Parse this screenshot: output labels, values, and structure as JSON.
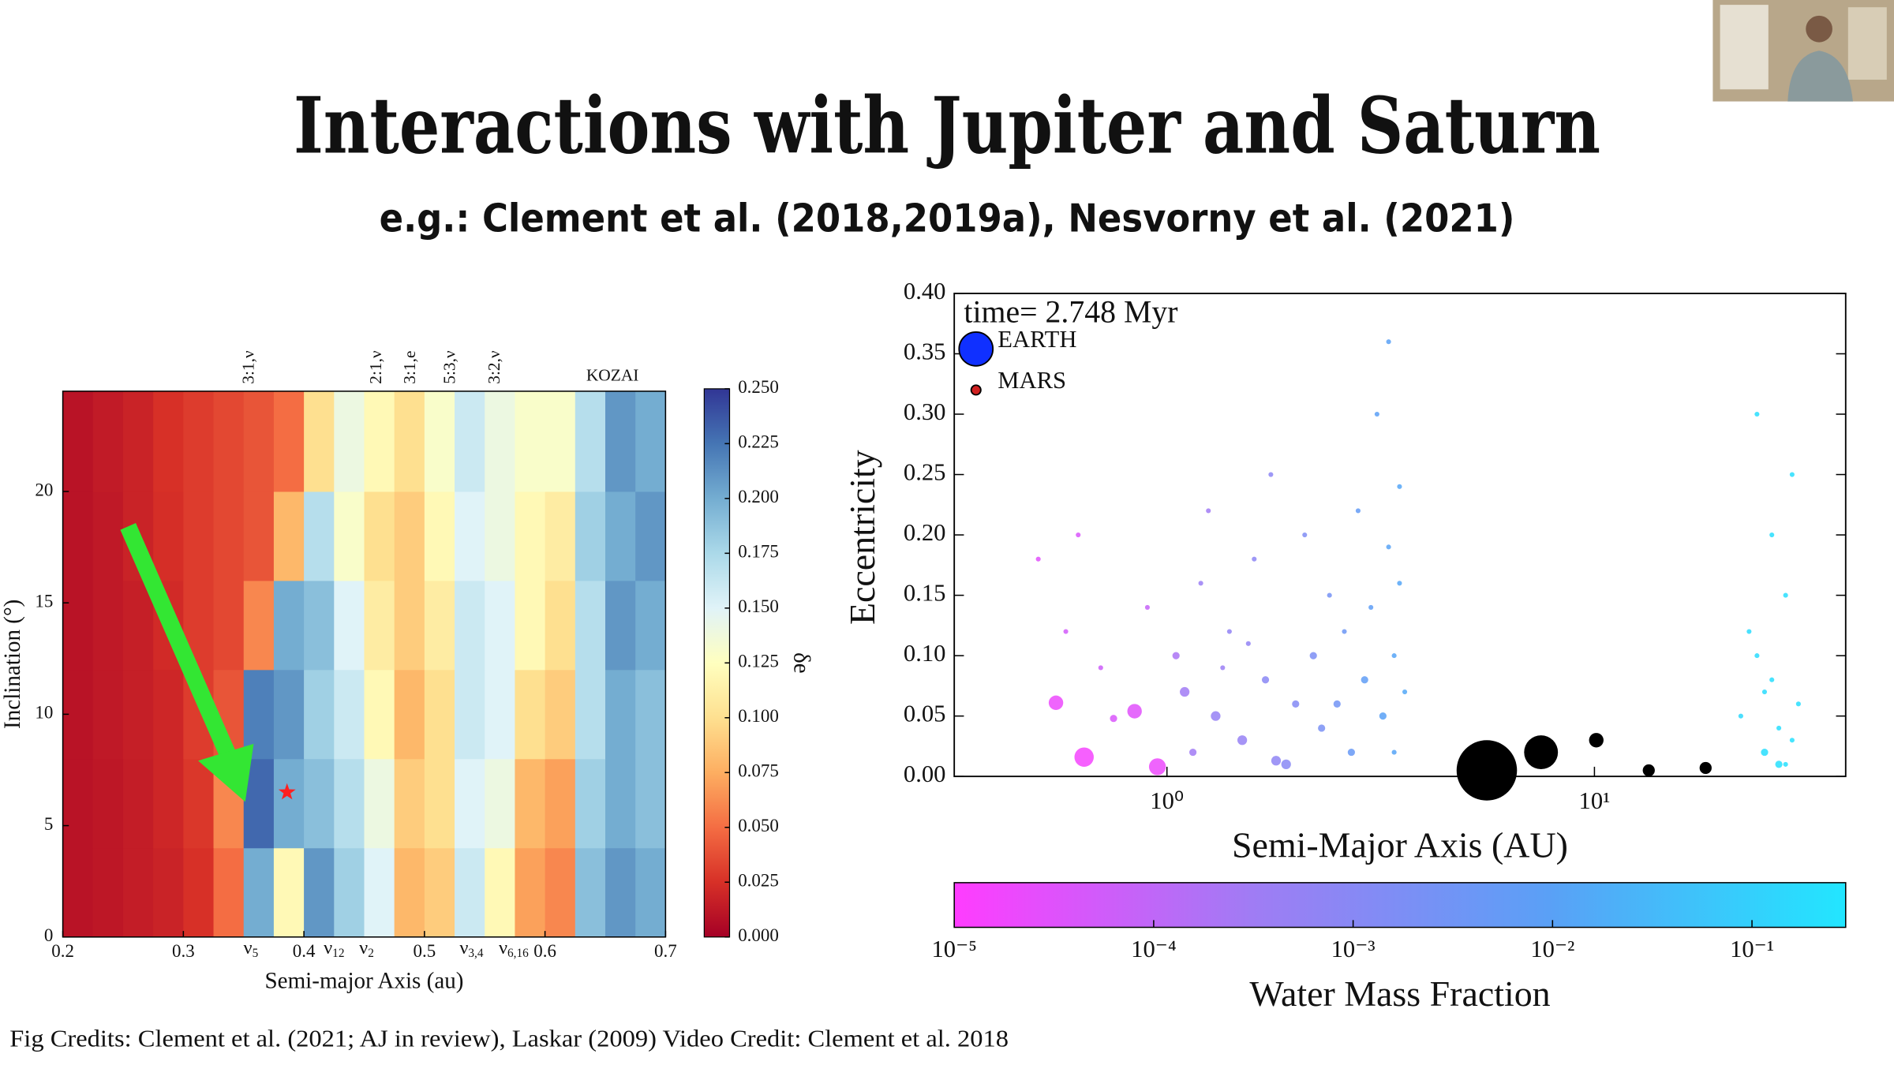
{
  "title": "Interactions with Jupiter and Saturn",
  "subtitle": "e.g.:  Clement et al. (2018,2019a), Nesvorny et al. (2021)",
  "credits": "Fig Credits: Clement et al. (2021; AJ in review), Laskar (2009) Video Credit: Clement et al. 2018",
  "chart_data": [
    {
      "type": "heatmap",
      "xlabel": "Semi-major Axis (au)",
      "ylabel": "Inclination (°)",
      "xlim": [
        0.2,
        0.7
      ],
      "ylim": [
        0,
        24.5
      ],
      "xticks": [
        0.2,
        0.3,
        0.4,
        0.5,
        0.6,
        0.7
      ],
      "yticks": [
        0,
        5,
        10,
        15,
        20
      ],
      "xbins": [
        0.2,
        0.225,
        0.25,
        0.275,
        0.3,
        0.325,
        0.35,
        0.375,
        0.4,
        0.425,
        0.45,
        0.475,
        0.5,
        0.525,
        0.55,
        0.575,
        0.6,
        0.625,
        0.65,
        0.675,
        0.7
      ],
      "ybins": [
        0,
        4,
        8,
        12,
        16,
        20,
        24.5
      ],
      "values": [
        [
          0.01,
          0.012,
          0.015,
          0.018,
          0.025,
          0.05,
          0.2,
          0.12,
          0.21,
          0.18,
          0.15,
          0.08,
          0.09,
          0.16,
          0.12,
          0.07,
          0.06,
          0.19,
          0.21,
          0.2
        ],
        [
          0.01,
          0.012,
          0.015,
          0.02,
          0.028,
          0.06,
          0.23,
          0.2,
          0.19,
          0.17,
          0.14,
          0.09,
          0.1,
          0.15,
          0.14,
          0.08,
          0.07,
          0.18,
          0.2,
          0.19
        ],
        [
          0.01,
          0.013,
          0.016,
          0.02,
          0.03,
          0.04,
          0.22,
          0.21,
          0.18,
          0.16,
          0.12,
          0.08,
          0.1,
          0.16,
          0.15,
          0.1,
          0.09,
          0.17,
          0.2,
          0.19
        ],
        [
          0.01,
          0.013,
          0.016,
          0.022,
          0.03,
          0.035,
          0.06,
          0.2,
          0.19,
          0.15,
          0.11,
          0.09,
          0.11,
          0.16,
          0.15,
          0.12,
          0.1,
          0.17,
          0.21,
          0.2
        ],
        [
          0.01,
          0.013,
          0.018,
          0.024,
          0.03,
          0.035,
          0.04,
          0.08,
          0.17,
          0.13,
          0.1,
          0.09,
          0.12,
          0.15,
          0.14,
          0.12,
          0.11,
          0.18,
          0.2,
          0.21
        ],
        [
          0.01,
          0.014,
          0.018,
          0.025,
          0.03,
          0.035,
          0.04,
          0.05,
          0.1,
          0.14,
          0.12,
          0.1,
          0.13,
          0.16,
          0.14,
          0.13,
          0.13,
          0.17,
          0.21,
          0.2
        ]
      ],
      "colorbar_label": "δe",
      "clim": [
        0,
        0.25
      ],
      "cticks": [
        {
          "value": 0,
          "label": "0.000"
        },
        {
          "value": 0.025,
          "label": "0.025"
        },
        {
          "value": 0.05,
          "label": "0.050"
        },
        {
          "value": 0.075,
          "label": "0.075"
        },
        {
          "value": 0.1,
          "label": "0.100"
        },
        {
          "value": 0.125,
          "label": "0.125"
        },
        {
          "value": 0.15,
          "label": "0.150"
        },
        {
          "value": 0.175,
          "label": "0.175"
        },
        {
          "value": 0.2,
          "label": "0.200"
        },
        {
          "value": 0.225,
          "label": "0.225"
        },
        {
          "value": 0.25,
          "label": "0.250"
        }
      ],
      "colormap": [
        "#a50026",
        "#d73027",
        "#f46d43",
        "#fdae61",
        "#fee090",
        "#ffffbf",
        "#e0f3f8",
        "#abd9e9",
        "#74add1",
        "#4575b4",
        "#313695"
      ],
      "top_labels": [
        {
          "text": "3:1,ν",
          "x": 0.355,
          "vertical": true
        },
        {
          "text": "2:1,ν",
          "x": 0.461,
          "vertical": true
        },
        {
          "text": "3:1,e",
          "x": 0.489,
          "vertical": true
        },
        {
          "text": "5:3,ν",
          "x": 0.522,
          "vertical": true
        },
        {
          "text": "3:2,ν",
          "x": 0.559,
          "vertical": true
        },
        {
          "text": "KOZAI",
          "x": 0.656,
          "vertical": false
        }
      ],
      "bottom_labels": [
        {
          "symbol": "ν",
          "sub": "5",
          "x": 0.356
        },
        {
          "symbol": "ν",
          "sub": "12",
          "x": 0.425
        },
        {
          "symbol": "ν",
          "sub": "2",
          "x": 0.452
        },
        {
          "symbol": "ν",
          "sub": "3,4",
          "x": 0.539
        },
        {
          "symbol": "ν",
          "sub": "6,16",
          "x": 0.574
        }
      ],
      "marker": {
        "x": 0.386,
        "y": 6.5,
        "color": "#ff2020"
      }
    },
    {
      "type": "scatter",
      "title": "time= 2.748 Myr",
      "xlabel": "Semi-Major Axis (AU)",
      "ylabel": "Eccentricity",
      "xscale": "log",
      "xlim": [
        0.318,
        38.7
      ],
      "ylim": [
        0,
        0.4
      ],
      "xticks": [
        {
          "value": 1,
          "label": "10⁰"
        },
        {
          "value": 10,
          "label": "10¹"
        }
      ],
      "yticks": [
        {
          "value": 0,
          "label": "0.00"
        },
        {
          "value": 0.05,
          "label": "0.05"
        },
        {
          "value": 0.1,
          "label": "0.10"
        },
        {
          "value": 0.15,
          "label": "0.15"
        },
        {
          "value": 0.2,
          "label": "0.20"
        },
        {
          "value": 0.25,
          "label": "0.25"
        },
        {
          "value": 0.3,
          "label": "0.30"
        },
        {
          "value": 0.35,
          "label": "0.35"
        },
        {
          "value": 0.4,
          "label": "0.40"
        }
      ],
      "points": {
        "x": [
          0.55,
          0.64,
          0.84,
          0.95,
          0.75,
          0.5,
          0.58,
          0.7,
          0.9,
          0.62,
          1.05,
          1.1,
          1.2,
          1.3,
          1.25,
          1.4,
          1.5,
          1.6,
          1.7,
          1.8,
          1.9,
          2.0,
          2.1,
          2.2,
          2.3,
          2.4,
          1.15,
          1.35,
          1.55,
          1.75,
          2.5,
          2.6,
          2.7,
          2.8,
          2.9,
          3.0,
          3.1,
          3.2,
          3.3,
          3.4,
          3.5,
          3.6,
          3.3,
          3.4,
          3.5,
          22,
          24,
          25,
          26,
          27,
          28,
          29,
          30,
          23,
          26,
          28,
          27,
          25,
          29,
          24
        ],
        "y": [
          0.061,
          0.016,
          0.054,
          0.008,
          0.048,
          0.18,
          0.12,
          0.09,
          0.14,
          0.2,
          0.1,
          0.07,
          0.16,
          0.05,
          0.22,
          0.12,
          0.03,
          0.18,
          0.08,
          0.013,
          0.01,
          0.06,
          0.2,
          0.1,
          0.04,
          0.15,
          0.02,
          0.09,
          0.11,
          0.25,
          0.06,
          0.12,
          0.02,
          0.22,
          0.08,
          0.14,
          0.3,
          0.05,
          0.19,
          0.1,
          0.24,
          0.07,
          0.36,
          0.02,
          0.16,
          0.05,
          0.1,
          0.02,
          0.08,
          0.01,
          0.15,
          0.03,
          0.06,
          0.12,
          0.2,
          0.01,
          0.04,
          0.07,
          0.25,
          0.3
        ],
        "size": [
          3,
          4,
          3,
          3.5,
          1.5,
          1,
          1,
          1,
          1,
          1,
          1.5,
          2,
          1,
          2,
          1,
          1,
          2,
          1,
          1.5,
          2,
          2,
          1.5,
          1,
          1.5,
          1.5,
          1,
          1.5,
          1,
          1,
          1,
          1.5,
          1,
          1.5,
          1,
          1.5,
          1,
          1,
          1.5,
          1,
          1,
          1,
          1,
          1,
          1,
          1,
          1,
          1,
          1.5,
          1,
          1.5,
          1,
          1,
          1,
          1,
          1,
          1,
          1,
          1,
          1,
          1
        ],
        "water": [
          2e-05,
          1.5e-05,
          3e-05,
          2e-05,
          4e-05,
          3e-05,
          5e-05,
          6e-05,
          8e-05,
          4e-05,
          0.0002,
          0.0003,
          0.0004,
          0.0005,
          0.0003,
          0.0006,
          0.0005,
          0.0008,
          0.0009,
          0.0007,
          0.001,
          0.0012,
          0.0015,
          0.0018,
          0.002,
          0.0025,
          0.0003,
          0.0004,
          0.0006,
          0.0008,
          0.003,
          0.004,
          0.005,
          0.006,
          0.007,
          0.008,
          0.009,
          0.01,
          0.011,
          0.012,
          0.013,
          0.014,
          0.01,
          0.012,
          0.013,
          0.15,
          0.18,
          0.2,
          0.2,
          0.22,
          0.2,
          0.22,
          0.2,
          0.18,
          0.2,
          0.22,
          0.2,
          0.18,
          0.2,
          0.2
        ]
      },
      "giants": {
        "x": [
          5.6,
          7.5,
          10.1,
          13.4,
          18.2
        ],
        "y": [
          0.005,
          0.02,
          0.03,
          0.005,
          0.007
        ],
        "size": [
          12.5,
          7,
          3,
          2.5,
          2.5
        ],
        "color": "#000000"
      },
      "legend": {
        "corner": "upper left",
        "entries": [
          {
            "name": "EARTH",
            "color": "#1030ff",
            "size": 7
          },
          {
            "name": "MARS",
            "color": "#d02020",
            "size": 2
          }
        ]
      },
      "colorbar_label": "Water Mass Fraction",
      "cscale": "log",
      "clim": [
        1e-05,
        0.295
      ],
      "cticks": [
        {
          "value": 1e-05,
          "label": "10⁻⁵"
        },
        {
          "value": 0.0001,
          "label": "10⁻⁴"
        },
        {
          "value": 0.001,
          "label": "10⁻³"
        },
        {
          "value": 0.01,
          "label": "10⁻²"
        },
        {
          "value": 0.1,
          "label": "10⁻¹"
        }
      ],
      "colormap": [
        "#ff3cff",
        "#a07cf4",
        "#5aa0f6",
        "#22e6ff"
      ]
    }
  ]
}
